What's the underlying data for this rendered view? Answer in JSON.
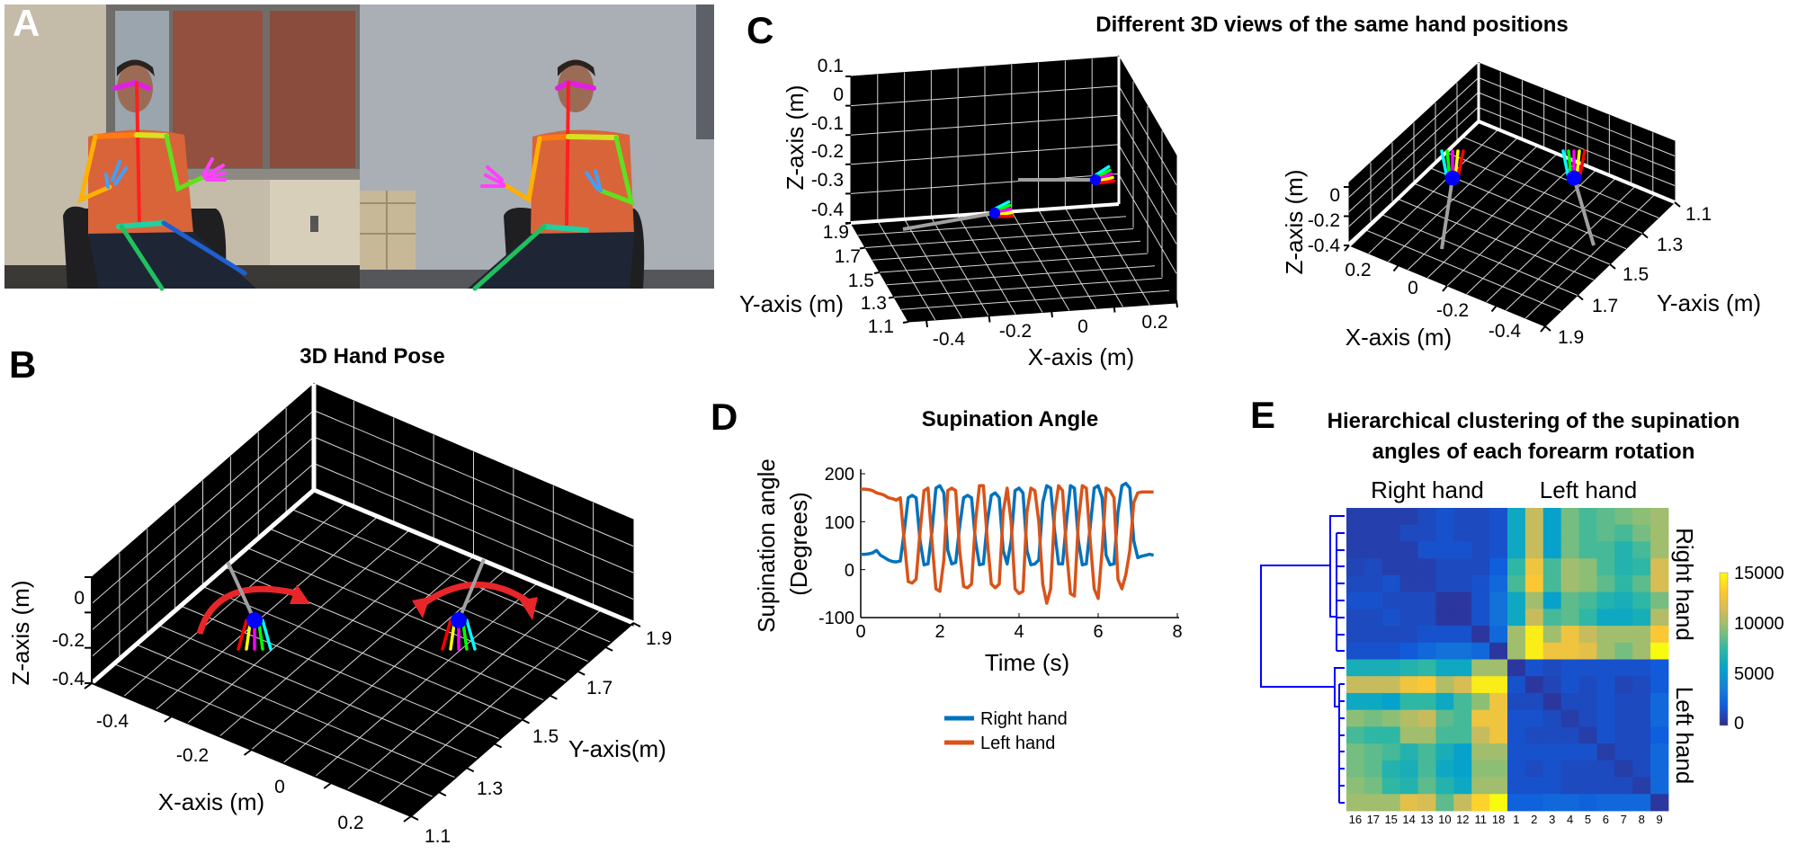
{
  "panels": {
    "A": {
      "label": "A"
    },
    "B": {
      "label": "B",
      "title": "3D Hand Pose",
      "x_label": "X-axis (m)",
      "y_label": "Y-axis(m)",
      "z_label": "Z-axis (m)",
      "x_ticks": [
        "-0.4",
        "-0.2",
        "0",
        "0.2"
      ],
      "y_ticks": [
        "1.1",
        "1.3",
        "1.5",
        "1.7",
        "1.9"
      ],
      "z_ticks": [
        "0",
        "-0.2",
        "-0.4"
      ]
    },
    "C": {
      "label": "C",
      "title": "Different 3D views of the same hand positions",
      "left": {
        "x_label": "X-axis (m)",
        "y_label": "Y-axis (m)",
        "z_label": "Z-axis (m)",
        "x_ticks": [
          "-0.4",
          "-0.2",
          "0",
          "0.2"
        ],
        "y_ticks": [
          "1.9",
          "1.7",
          "1.5",
          "1.3",
          "1.1"
        ],
        "z_ticks": [
          "0.1",
          "0",
          "-0.1",
          "-0.2",
          "-0.3",
          "-0.4"
        ]
      },
      "right": {
        "x_label": "X-axis (m)",
        "y_label": "Y-axis (m)",
        "z_label": "Z-axis (m)",
        "x_ticks": [
          "0.2",
          "0",
          "-0.2",
          "-0.4"
        ],
        "y_ticks": [
          "1.1",
          "1.3",
          "1.5",
          "1.7",
          "1.9"
        ],
        "z_ticks": [
          "0",
          "-0.2",
          "-0.4"
        ]
      }
    },
    "D": {
      "label": "D"
    },
    "E": {
      "label": "E"
    }
  },
  "colors": {
    "right_hand": "#0072bd",
    "left_hand": "#d95319",
    "dendrogram": "#0000ff",
    "rotation_arrow": "#e8262a",
    "forearm": "#a0a0a0",
    "palm": "#0000ff",
    "fingers": [
      "#00ffff",
      "#00ff00",
      "#ff00ff",
      "#ffff00",
      "#ff0000"
    ]
  },
  "chart_data": [
    {
      "type": "line",
      "title": "Supination Angle",
      "xlabel": "Time (s)",
      "ylabel": [
        "Supination angle",
        "(Degrees)"
      ],
      "xlim": [
        0,
        8
      ],
      "ylim": [
        -100,
        200
      ],
      "xticks": [
        "0",
        "2",
        "4",
        "6",
        "8"
      ],
      "yticks": [
        "200",
        "100",
        "0",
        "-100"
      ],
      "x_step": 0.1,
      "legend": "bottom",
      "series": [
        {
          "name": "Right hand",
          "values": [
            32,
            32,
            33,
            35,
            40,
            30,
            25,
            20,
            17,
            16,
            18,
            80,
            150,
            155,
            150,
            60,
            10,
            12,
            80,
            170,
            175,
            160,
            40,
            12,
            15,
            90,
            150,
            155,
            150,
            60,
            10,
            12,
            100,
            155,
            160,
            150,
            40,
            12,
            60,
            165,
            170,
            160,
            40,
            10,
            12,
            20,
            140,
            175,
            170,
            80,
            12,
            12,
            100,
            175,
            170,
            60,
            10,
            12,
            90,
            170,
            175,
            150,
            30,
            10,
            12,
            120,
            175,
            180,
            170,
            60,
            25,
            28,
            30,
            32,
            30
          ]
        },
        {
          "name": "Left hand",
          "values": [
            168,
            168,
            167,
            165,
            160,
            158,
            155,
            150,
            148,
            145,
            150,
            60,
            -25,
            -28,
            -20,
            80,
            165,
            170,
            60,
            -40,
            -45,
            20,
            165,
            170,
            165,
            40,
            -35,
            -38,
            -30,
            100,
            175,
            175,
            60,
            -30,
            -38,
            -30,
            120,
            170,
            100,
            -40,
            -50,
            -45,
            120,
            170,
            165,
            100,
            -30,
            -70,
            -40,
            120,
            175,
            165,
            40,
            -50,
            -55,
            100,
            175,
            170,
            60,
            -40,
            -60,
            40,
            170,
            165,
            150,
            -20,
            -40,
            -10,
            40,
            140,
            160,
            162,
            162,
            162,
            162
          ]
        }
      ]
    },
    {
      "type": "heatmap",
      "title": [
        "Hierarchical clustering of the supination",
        "angles of each forearm rotation"
      ],
      "top_labels": [
        "Right hand",
        "Left hand"
      ],
      "side_labels": [
        "Right hand",
        "Left hand"
      ],
      "column_labels": [
        "16",
        "17",
        "15",
        "14",
        "13",
        "10",
        "12",
        "11",
        "18",
        "1",
        "2",
        "3",
        "4",
        "5",
        "6",
        "7",
        "8",
        "9"
      ],
      "colorbar": {
        "min": 0,
        "max": 15000,
        "ticks": [
          "15000",
          "10000",
          "5000",
          "0"
        ]
      },
      "values": [
        [
          800,
          800,
          800,
          800,
          1200,
          1500,
          1200,
          1200,
          1500,
          6000,
          11000,
          5500,
          9000,
          8000,
          8500,
          9000,
          9500,
          10000
        ],
        [
          800,
          800,
          800,
          1200,
          1200,
          1500,
          1200,
          1200,
          1500,
          6000,
          11000,
          5500,
          9000,
          8000,
          8500,
          8000,
          9000,
          10000
        ],
        [
          800,
          800,
          800,
          800,
          1500,
          1500,
          1500,
          1200,
          1500,
          6000,
          11000,
          5500,
          9000,
          8000,
          8000,
          7000,
          8000,
          10000
        ],
        [
          1000,
          1200,
          800,
          800,
          800,
          1200,
          1200,
          1200,
          2000,
          7500,
          12500,
          8000,
          10000,
          9500,
          8000,
          7000,
          7500,
          11500
        ],
        [
          1200,
          1200,
          1500,
          800,
          800,
          1200,
          1200,
          1500,
          2500,
          8000,
          13000,
          8000,
          10000,
          9500,
          8500,
          7500,
          8500,
          11500
        ],
        [
          1500,
          1500,
          1200,
          1200,
          1200,
          500,
          500,
          1500,
          3000,
          6000,
          10000,
          5500,
          8500,
          8000,
          7000,
          6500,
          7500,
          9000
        ],
        [
          1200,
          1200,
          1500,
          1200,
          1200,
          500,
          500,
          1500,
          3000,
          6000,
          11000,
          8000,
          8500,
          7500,
          6000,
          6000,
          6500,
          10500
        ],
        [
          1200,
          1200,
          1200,
          1200,
          1500,
          1500,
          1500,
          500,
          2500,
          10000,
          14500,
          10000,
          12500,
          11000,
          10000,
          10000,
          10000,
          13000
        ],
        [
          1500,
          1500,
          1500,
          1800,
          2500,
          3000,
          3000,
          2500,
          500,
          10000,
          14500,
          12500,
          12500,
          12000,
          10000,
          9000,
          10000,
          15500
        ],
        [
          6500,
          6500,
          6500,
          7000,
          7500,
          6000,
          6000,
          10000,
          10000,
          500,
          1500,
          1200,
          1500,
          1500,
          1500,
          1500,
          1500,
          1800
        ],
        [
          11000,
          11000,
          11000,
          12500,
          13000,
          10500,
          11500,
          14500,
          14500,
          1500,
          500,
          1000,
          1500,
          1200,
          1500,
          1000,
          1200,
          1800
        ],
        [
          6000,
          6000,
          5500,
          7500,
          7500,
          6000,
          8000,
          9500,
          12500,
          1200,
          1200,
          500,
          1200,
          1200,
          1500,
          1200,
          1200,
          2500
        ],
        [
          9500,
          9000,
          9500,
          10500,
          11000,
          8500,
          8000,
          12500,
          12500,
          1500,
          1500,
          1200,
          700,
          1200,
          1500,
          1200,
          1200,
          2500
        ],
        [
          8000,
          7500,
          7500,
          10000,
          10000,
          8000,
          8000,
          11000,
          12500,
          1500,
          1200,
          1200,
          1200,
          700,
          1500,
          1200,
          1200,
          2000
        ],
        [
          9000,
          8500,
          8000,
          7000,
          8000,
          6500,
          5500,
          10000,
          10000,
          1500,
          1500,
          1500,
          1500,
          1500,
          700,
          1200,
          1200,
          2500
        ],
        [
          9000,
          8500,
          7000,
          6500,
          8000,
          6000,
          5500,
          9500,
          9500,
          1500,
          1200,
          1500,
          1200,
          1200,
          1200,
          700,
          1200,
          2500
        ],
        [
          9500,
          9000,
          7500,
          7000,
          8500,
          7000,
          6000,
          10000,
          10000,
          1500,
          1500,
          1500,
          1200,
          1200,
          1200,
          1200,
          700,
          2500
        ],
        [
          10000,
          10000,
          10000,
          12000,
          11500,
          8500,
          11000,
          13500,
          15500,
          2200,
          2200,
          2500,
          2500,
          2200,
          2500,
          2500,
          2500,
          500
        ]
      ]
    }
  ]
}
